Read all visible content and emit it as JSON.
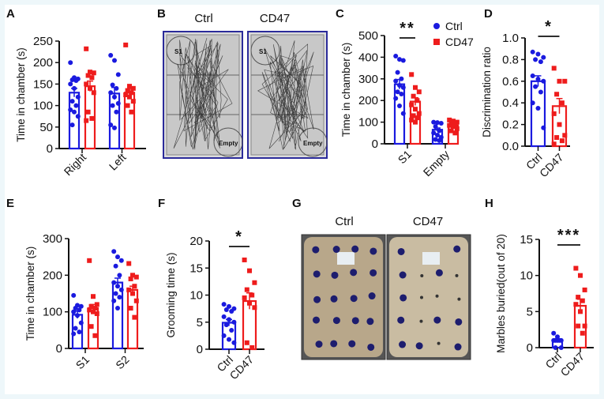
{
  "panels": {
    "A": "A",
    "B": "B",
    "C": "C",
    "D": "D",
    "E": "E",
    "F": "F",
    "G": "G",
    "H": "H"
  },
  "colors": {
    "ctrl": "#1a1adf",
    "cd47": "#ee1c1c"
  },
  "legend": {
    "ctrl": "Ctrl",
    "cd47": "CD47"
  },
  "panel_b": {
    "titles": [
      "Ctrl",
      "CD47"
    ],
    "zone_labels": [
      "S1",
      "Empty"
    ]
  },
  "panel_g": {
    "titles": [
      "Ctrl",
      "CD47"
    ]
  },
  "chart_data": [
    {
      "id": "A",
      "type": "bar",
      "ylabel": "Time in chamber (s)",
      "ylim": [
        0,
        250
      ],
      "yticks": [
        0,
        50,
        100,
        150,
        200,
        250
      ],
      "categories": [
        "Right",
        "Left"
      ],
      "series_names": [
        "Ctrl",
        "CD47"
      ],
      "groups": [
        {
          "category": "Right",
          "bars": [
            {
              "mean": 130,
              "sem": 10,
              "points": [
                200,
                165,
                162,
                160,
                158,
                150,
                140,
                120,
                110,
                100,
                90,
                85,
                75,
                55
              ]
            },
            {
              "mean": 145,
              "sem": 12,
              "points": [
                232,
                178,
                176,
                170,
                165,
                150,
                140,
                130,
                85,
                70,
                65
              ]
            }
          ]
        },
        {
          "category": "Left",
          "bars": [
            {
              "mean": 128,
              "sem": 14,
              "points": [
                217,
                205,
                172,
                148,
                140,
                130,
                120,
                105,
                100,
                85,
                55,
                48
              ]
            },
            {
              "mean": 130,
              "sem": 8,
              "points": [
                241,
                145,
                140,
                135,
                130,
                125,
                120,
                110,
                100,
                85
              ]
            }
          ]
        }
      ],
      "significance": []
    },
    {
      "id": "C",
      "type": "bar",
      "ylabel": "Time in chamber (s)",
      "ylim": [
        0,
        500
      ],
      "yticks": [
        0,
        100,
        200,
        300,
        400,
        500
      ],
      "categories": [
        "S1",
        "Empty"
      ],
      "series_names": [
        "Ctrl",
        "CD47"
      ],
      "legend": "top-right",
      "groups": [
        {
          "category": "S1",
          "bars": [
            {
              "mean": 275,
              "sem": 22,
              "points": [
                405,
                390,
                385,
                330,
                300,
                290,
                270,
                260,
                240,
                230,
                210,
                175,
                140
              ]
            },
            {
              "mean": 195,
              "sem": 18,
              "points": [
                320,
                260,
                240,
                220,
                200,
                180,
                160,
                140,
                130,
                120,
                110,
                100
              ]
            }
          ]
        },
        {
          "category": "Empty",
          "bars": [
            {
              "mean": 65,
              "sem": 8,
              "points": [
                100,
                98,
                95,
                80,
                60,
                50,
                40,
                30,
                20,
                15
              ]
            },
            {
              "mean": 85,
              "sem": 6,
              "points": [
                110,
                105,
                100,
                95,
                90,
                85,
                80,
                70,
                60,
                50
              ]
            }
          ]
        }
      ],
      "significance": [
        {
          "group": "S1",
          "label": "**"
        }
      ]
    },
    {
      "id": "D",
      "type": "bar",
      "ylabel": "Discrimination ratio",
      "ylim": [
        0,
        1.0
      ],
      "yticks": [
        "0.0",
        "0.2",
        "0.4",
        "0.6",
        "0.8",
        "1.0"
      ],
      "categories": [
        "Ctrl",
        "CD47"
      ],
      "groups": [
        {
          "category": "",
          "bars": [
            {
              "mean": 0.6,
              "sem": 0.05,
              "points": [
                0.87,
                0.85,
                0.82,
                0.8,
                0.78,
                0.65,
                0.62,
                0.6,
                0.55,
                0.5,
                0.4,
                0.35,
                0.17
              ]
            },
            {
              "mean": 0.37,
              "sem": 0.07,
              "points": [
                0.72,
                0.6,
                0.6,
                0.48,
                0.4,
                0.3,
                0.2,
                0.1,
                0.08,
                0.05,
                0.02
              ]
            }
          ]
        }
      ],
      "significance": [
        {
          "group": "",
          "label": "*"
        }
      ]
    },
    {
      "id": "E",
      "type": "bar",
      "ylabel": "Time in chamber (s)",
      "ylim": [
        0,
        300
      ],
      "yticks": [
        0,
        100,
        200,
        300
      ],
      "categories": [
        "S1",
        "S2"
      ],
      "groups": [
        {
          "category": "S1",
          "bars": [
            {
              "mean": 92,
              "sem": 10,
              "points": [
                145,
                118,
                115,
                110,
                105,
                100,
                90,
                70,
                55,
                45,
                40
              ]
            },
            {
              "mean": 110,
              "sem": 10,
              "points": [
                240,
                142,
                120,
                115,
                110,
                105,
                100,
                95,
                60,
                35
              ]
            }
          ]
        },
        {
          "category": "S2",
          "bars": [
            {
              "mean": 180,
              "sem": 12,
              "points": [
                265,
                250,
                240,
                225,
                200,
                180,
                170,
                160,
                150,
                140,
                130,
                110
              ]
            },
            {
              "mean": 160,
              "sem": 10,
              "points": [
                232,
                200,
                195,
                190,
                170,
                160,
                150,
                130,
                110,
                85
              ]
            }
          ]
        }
      ],
      "significance": []
    },
    {
      "id": "F",
      "type": "bar",
      "ylabel": "Grooming time (s)",
      "ylim": [
        0,
        20
      ],
      "yticks": [
        0,
        5,
        10,
        15,
        20
      ],
      "categories": [
        "Ctrl",
        "CD47"
      ],
      "groups": [
        {
          "category": "",
          "bars": [
            {
              "mean": 4.9,
              "sem": 0.6,
              "points": [
                8.3,
                7.9,
                7.5,
                7.3,
                7,
                6,
                5.5,
                5,
                4.5,
                3.5,
                2.5,
                1.8,
                1.2
              ]
            },
            {
              "mean": 8.9,
              "sem": 1.5,
              "points": [
                16.5,
                14.5,
                12.3,
                11,
                10,
                9.5,
                8.5,
                7.7,
                1.2,
                0.3
              ]
            }
          ]
        }
      ],
      "significance": [
        {
          "group": "",
          "label": "*"
        }
      ]
    },
    {
      "id": "H",
      "type": "bar",
      "ylabel": "Marbles buried(out of 20)",
      "ylim": [
        0,
        15
      ],
      "yticks": [
        0,
        5,
        10,
        15
      ],
      "categories": [
        "Ctrl",
        "CD47"
      ],
      "groups": [
        {
          "category": "",
          "bars": [
            {
              "mean": 1.0,
              "sem": 0.2,
              "points": [
                2,
                1.5,
                1,
                1,
                1,
                1,
                1,
                0,
                0
              ]
            },
            {
              "mean": 5.8,
              "sem": 0.9,
              "points": [
                11,
                10,
                8,
                7,
                6.5,
                6,
                5,
                3,
                3,
                2
              ]
            }
          ]
        }
      ],
      "significance": [
        {
          "group": "",
          "label": "***"
        }
      ]
    }
  ]
}
